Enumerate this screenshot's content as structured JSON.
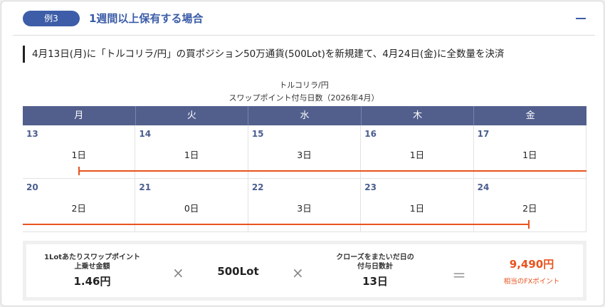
{
  "header": {
    "badge": "例3",
    "title": "1週間以上保有する場合"
  },
  "description": "4月13日(月)に「トルコリラ/円」の買ポジション50万通貨(500Lot)を新規建て、4月24日(金)に全数量を決済",
  "calendar": {
    "title_line1": "トルコリラ/円",
    "title_line2": "スワップポイント付与日数（2026年4月）",
    "weekdays": [
      "月",
      "火",
      "水",
      "木",
      "金"
    ],
    "weeks": [
      [
        {
          "day": "13",
          "swap": "1日"
        },
        {
          "day": "14",
          "swap": "1日"
        },
        {
          "day": "15",
          "swap": "3日"
        },
        {
          "day": "16",
          "swap": "1日"
        },
        {
          "day": "17",
          "swap": "1日"
        }
      ],
      [
        {
          "day": "20",
          "swap": "2日"
        },
        {
          "day": "21",
          "swap": "0日"
        },
        {
          "day": "22",
          "swap": "3日"
        },
        {
          "day": "23",
          "swap": "1日"
        },
        {
          "day": "24",
          "swap": "2日"
        }
      ]
    ]
  },
  "summary": {
    "swap_label_1": "1Lotあたりスワップポイント",
    "swap_label_2": "上乗せ金額",
    "swap_value": "1.46円",
    "times_1": "×",
    "lot_value": "500Lot",
    "times_2": "×",
    "days_label_1": "クローズをまたいだ日の",
    "days_label_2": "付与日数計",
    "days_value": "13日",
    "equals": "＝",
    "result_value": "9,490円",
    "result_label": "相当のFXポイント"
  },
  "colors": {
    "accent": "#3b5ca8",
    "calendar_header": "#525f8d",
    "highlight": "#e8531f"
  }
}
